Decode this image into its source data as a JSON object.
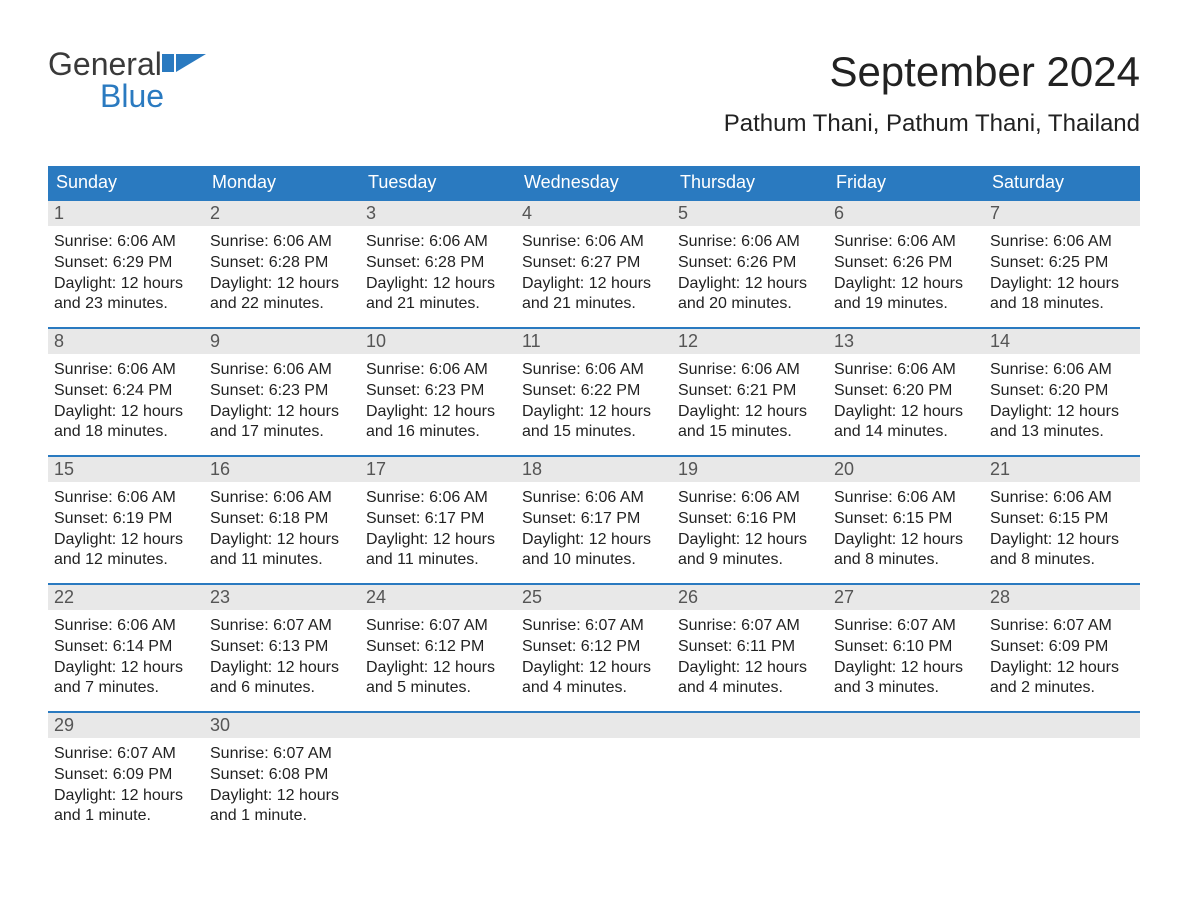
{
  "brand": {
    "word1": "General",
    "word2": "Blue"
  },
  "title": "September 2024",
  "location": "Pathum Thani, Pathum Thani, Thailand",
  "colors": {
    "header_bg": "#2a7ac0",
    "header_text": "#ffffff",
    "daynum_bg": "#e8e8e8",
    "daynum_border": "#2a7ac0",
    "body_text": "#222222",
    "brand_general": "#3a3a3a",
    "brand_blue": "#2a7ac0",
    "page_bg": "#ffffff"
  },
  "typography": {
    "title_fontsize": 42,
    "location_fontsize": 24,
    "header_fontsize": 18,
    "daynum_fontsize": 18,
    "body_fontsize": 16,
    "logo_fontsize": 32,
    "font_family": "Arial"
  },
  "columns": [
    "Sunday",
    "Monday",
    "Tuesday",
    "Wednesday",
    "Thursday",
    "Friday",
    "Saturday"
  ],
  "weeks": [
    [
      {
        "n": "1",
        "sunrise": "Sunrise: 6:06 AM",
        "sunset": "Sunset: 6:29 PM",
        "d1": "Daylight: 12 hours",
        "d2": "and 23 minutes."
      },
      {
        "n": "2",
        "sunrise": "Sunrise: 6:06 AM",
        "sunset": "Sunset: 6:28 PM",
        "d1": "Daylight: 12 hours",
        "d2": "and 22 minutes."
      },
      {
        "n": "3",
        "sunrise": "Sunrise: 6:06 AM",
        "sunset": "Sunset: 6:28 PM",
        "d1": "Daylight: 12 hours",
        "d2": "and 21 minutes."
      },
      {
        "n": "4",
        "sunrise": "Sunrise: 6:06 AM",
        "sunset": "Sunset: 6:27 PM",
        "d1": "Daylight: 12 hours",
        "d2": "and 21 minutes."
      },
      {
        "n": "5",
        "sunrise": "Sunrise: 6:06 AM",
        "sunset": "Sunset: 6:26 PM",
        "d1": "Daylight: 12 hours",
        "d2": "and 20 minutes."
      },
      {
        "n": "6",
        "sunrise": "Sunrise: 6:06 AM",
        "sunset": "Sunset: 6:26 PM",
        "d1": "Daylight: 12 hours",
        "d2": "and 19 minutes."
      },
      {
        "n": "7",
        "sunrise": "Sunrise: 6:06 AM",
        "sunset": "Sunset: 6:25 PM",
        "d1": "Daylight: 12 hours",
        "d2": "and 18 minutes."
      }
    ],
    [
      {
        "n": "8",
        "sunrise": "Sunrise: 6:06 AM",
        "sunset": "Sunset: 6:24 PM",
        "d1": "Daylight: 12 hours",
        "d2": "and 18 minutes."
      },
      {
        "n": "9",
        "sunrise": "Sunrise: 6:06 AM",
        "sunset": "Sunset: 6:23 PM",
        "d1": "Daylight: 12 hours",
        "d2": "and 17 minutes."
      },
      {
        "n": "10",
        "sunrise": "Sunrise: 6:06 AM",
        "sunset": "Sunset: 6:23 PM",
        "d1": "Daylight: 12 hours",
        "d2": "and 16 minutes."
      },
      {
        "n": "11",
        "sunrise": "Sunrise: 6:06 AM",
        "sunset": "Sunset: 6:22 PM",
        "d1": "Daylight: 12 hours",
        "d2": "and 15 minutes."
      },
      {
        "n": "12",
        "sunrise": "Sunrise: 6:06 AM",
        "sunset": "Sunset: 6:21 PM",
        "d1": "Daylight: 12 hours",
        "d2": "and 15 minutes."
      },
      {
        "n": "13",
        "sunrise": "Sunrise: 6:06 AM",
        "sunset": "Sunset: 6:20 PM",
        "d1": "Daylight: 12 hours",
        "d2": "and 14 minutes."
      },
      {
        "n": "14",
        "sunrise": "Sunrise: 6:06 AM",
        "sunset": "Sunset: 6:20 PM",
        "d1": "Daylight: 12 hours",
        "d2": "and 13 minutes."
      }
    ],
    [
      {
        "n": "15",
        "sunrise": "Sunrise: 6:06 AM",
        "sunset": "Sunset: 6:19 PM",
        "d1": "Daylight: 12 hours",
        "d2": "and 12 minutes."
      },
      {
        "n": "16",
        "sunrise": "Sunrise: 6:06 AM",
        "sunset": "Sunset: 6:18 PM",
        "d1": "Daylight: 12 hours",
        "d2": "and 11 minutes."
      },
      {
        "n": "17",
        "sunrise": "Sunrise: 6:06 AM",
        "sunset": "Sunset: 6:17 PM",
        "d1": "Daylight: 12 hours",
        "d2": "and 11 minutes."
      },
      {
        "n": "18",
        "sunrise": "Sunrise: 6:06 AM",
        "sunset": "Sunset: 6:17 PM",
        "d1": "Daylight: 12 hours",
        "d2": "and 10 minutes."
      },
      {
        "n": "19",
        "sunrise": "Sunrise: 6:06 AM",
        "sunset": "Sunset: 6:16 PM",
        "d1": "Daylight: 12 hours",
        "d2": "and 9 minutes."
      },
      {
        "n": "20",
        "sunrise": "Sunrise: 6:06 AM",
        "sunset": "Sunset: 6:15 PM",
        "d1": "Daylight: 12 hours",
        "d2": "and 8 minutes."
      },
      {
        "n": "21",
        "sunrise": "Sunrise: 6:06 AM",
        "sunset": "Sunset: 6:15 PM",
        "d1": "Daylight: 12 hours",
        "d2": "and 8 minutes."
      }
    ],
    [
      {
        "n": "22",
        "sunrise": "Sunrise: 6:06 AM",
        "sunset": "Sunset: 6:14 PM",
        "d1": "Daylight: 12 hours",
        "d2": "and 7 minutes."
      },
      {
        "n": "23",
        "sunrise": "Sunrise: 6:07 AM",
        "sunset": "Sunset: 6:13 PM",
        "d1": "Daylight: 12 hours",
        "d2": "and 6 minutes."
      },
      {
        "n": "24",
        "sunrise": "Sunrise: 6:07 AM",
        "sunset": "Sunset: 6:12 PM",
        "d1": "Daylight: 12 hours",
        "d2": "and 5 minutes."
      },
      {
        "n": "25",
        "sunrise": "Sunrise: 6:07 AM",
        "sunset": "Sunset: 6:12 PM",
        "d1": "Daylight: 12 hours",
        "d2": "and 4 minutes."
      },
      {
        "n": "26",
        "sunrise": "Sunrise: 6:07 AM",
        "sunset": "Sunset: 6:11 PM",
        "d1": "Daylight: 12 hours",
        "d2": "and 4 minutes."
      },
      {
        "n": "27",
        "sunrise": "Sunrise: 6:07 AM",
        "sunset": "Sunset: 6:10 PM",
        "d1": "Daylight: 12 hours",
        "d2": "and 3 minutes."
      },
      {
        "n": "28",
        "sunrise": "Sunrise: 6:07 AM",
        "sunset": "Sunset: 6:09 PM",
        "d1": "Daylight: 12 hours",
        "d2": "and 2 minutes."
      }
    ],
    [
      {
        "n": "29",
        "sunrise": "Sunrise: 6:07 AM",
        "sunset": "Sunset: 6:09 PM",
        "d1": "Daylight: 12 hours",
        "d2": "and 1 minute."
      },
      {
        "n": "30",
        "sunrise": "Sunrise: 6:07 AM",
        "sunset": "Sunset: 6:08 PM",
        "d1": "Daylight: 12 hours",
        "d2": "and 1 minute."
      },
      {
        "n": "",
        "sunrise": "",
        "sunset": "",
        "d1": "",
        "d2": ""
      },
      {
        "n": "",
        "sunrise": "",
        "sunset": "",
        "d1": "",
        "d2": ""
      },
      {
        "n": "",
        "sunrise": "",
        "sunset": "",
        "d1": "",
        "d2": ""
      },
      {
        "n": "",
        "sunrise": "",
        "sunset": "",
        "d1": "",
        "d2": ""
      },
      {
        "n": "",
        "sunrise": "",
        "sunset": "",
        "d1": "",
        "d2": ""
      }
    ]
  ]
}
